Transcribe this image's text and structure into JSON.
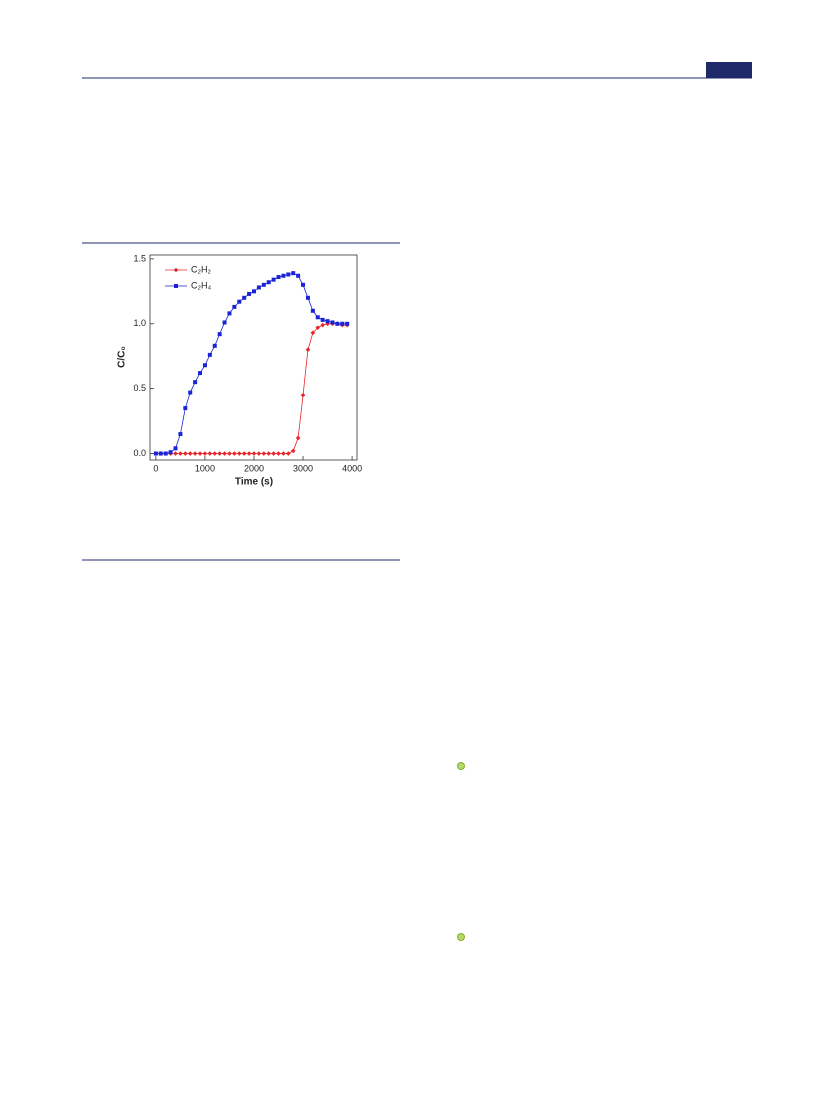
{
  "chart_data": {
    "type": "scatter-line",
    "x_label": "Time (s)",
    "y_label": "C/C₀",
    "xlim": [
      -120,
      4100
    ],
    "ylim": [
      -0.05,
      1.53
    ],
    "xticks": [
      0,
      1000,
      2000,
      3000,
      4000
    ],
    "yticks": [
      {
        "value": 0,
        "label": "0.0"
      },
      0.5,
      {
        "value": 1,
        "label": "1.0"
      },
      1.5
    ],
    "legend": "upper-left",
    "x": [
      0,
      100,
      200,
      300,
      400,
      500,
      600,
      700,
      800,
      900,
      1000,
      1100,
      1200,
      1300,
      1400,
      1500,
      1600,
      1700,
      1800,
      1900,
      2000,
      2100,
      2200,
      2300,
      2400,
      2500,
      2600,
      2700,
      2800,
      2900,
      3000,
      3100,
      3200,
      3300,
      3400,
      3500,
      3600,
      3700,
      3800,
      3900
    ],
    "series": [
      {
        "name": "C₂H₂",
        "color": "#e8262a",
        "values": [
          0,
          0,
          0,
          0,
          0,
          0,
          0,
          0,
          0,
          0,
          0,
          0,
          0,
          0,
          0,
          0,
          0,
          0,
          0,
          0,
          0,
          0,
          0,
          0,
          0,
          0,
          0,
          0,
          0.02,
          0.12,
          0.45,
          0.8,
          0.93,
          0.97,
          0.99,
          1.0,
          1.0,
          1.0,
          0.99,
          0.99
        ]
      },
      {
        "name": "C₂H₄",
        "color": "#1a23d6",
        "values": [
          0,
          0,
          0,
          0.01,
          0.04,
          0.15,
          0.35,
          0.47,
          0.55,
          0.62,
          0.68,
          0.76,
          0.83,
          0.92,
          1.01,
          1.08,
          1.13,
          1.17,
          1.2,
          1.23,
          1.25,
          1.28,
          1.3,
          1.32,
          1.34,
          1.36,
          1.37,
          1.38,
          1.39,
          1.37,
          1.3,
          1.2,
          1.1,
          1.05,
          1.03,
          1.02,
          1.01,
          1.0,
          1.0,
          1.0
        ]
      }
    ]
  }
}
